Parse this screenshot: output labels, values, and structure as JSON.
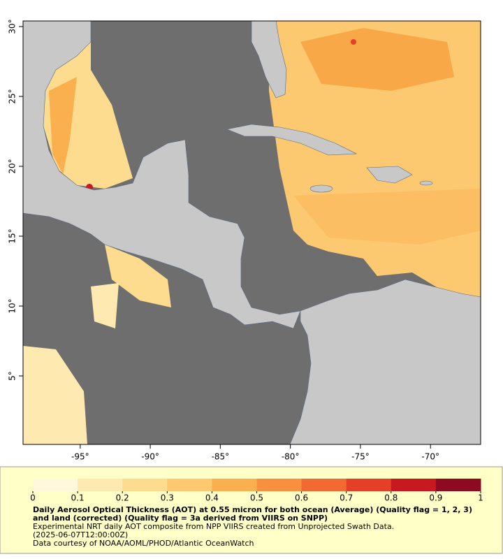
{
  "map": {
    "xlim": [
      -99.08,
      -66.42
    ],
    "ylim": [
      0.1,
      30.4
    ],
    "xticks": [
      {
        "value": -95,
        "label": "-95°"
      },
      {
        "value": -90,
        "label": "-90°"
      },
      {
        "value": -85,
        "label": "-85°"
      },
      {
        "value": -80,
        "label": "-80°"
      },
      {
        "value": -75,
        "label": "-75°"
      },
      {
        "value": -70,
        "label": "-70°"
      }
    ],
    "yticks": [
      {
        "value": 5,
        "label": "5°"
      },
      {
        "value": 10,
        "label": "10°"
      },
      {
        "value": 15,
        "label": "15°"
      },
      {
        "value": 20,
        "label": "20°"
      },
      {
        "value": 25,
        "label": "25°"
      },
      {
        "value": 30,
        "label": "30°"
      }
    ]
  },
  "colorbar": {
    "ticks": [
      0,
      0.1,
      0.2,
      0.3,
      0.4,
      0.5,
      0.6,
      0.7,
      0.8,
      0.9,
      1
    ],
    "colors": [
      "#fff8dc",
      "#fee9b0",
      "#fddc90",
      "#fcc870",
      "#fbb050",
      "#f89040",
      "#f26a32",
      "#e63f28",
      "#c81820",
      "#8e0a22"
    ]
  },
  "caption": {
    "title": "Daily Aerosol Optical Thickness (AOT) at 0.55 micron for both ocean (Average) (Quality flag = 1, 2, 3) and land (corrected) (Quality flag = 3a derived from VIIRS on SNPP)",
    "lines": [
      "Experimental NRT daily AOT composite from NPP VIIRS created from Unprojected Swath Data.",
      "(2025-06-07T12:00:00Z)",
      "Data courtesy of NOAA/AOML/PHOD/Atlantic OceanWatch"
    ]
  }
}
